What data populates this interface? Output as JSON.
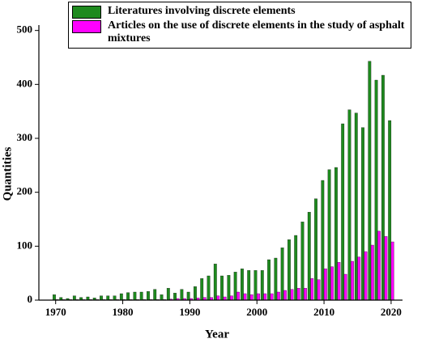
{
  "chart_data": {
    "type": "bar",
    "x_label": "Year",
    "y_label": "Quantities",
    "x": [
      1970,
      1971,
      1972,
      1973,
      1974,
      1975,
      1976,
      1977,
      1978,
      1979,
      1980,
      1981,
      1982,
      1983,
      1984,
      1985,
      1986,
      1987,
      1988,
      1989,
      1990,
      1991,
      1992,
      1993,
      1994,
      1995,
      1996,
      1997,
      1998,
      1999,
      2000,
      2001,
      2002,
      2003,
      2004,
      2005,
      2006,
      2007,
      2008,
      2009,
      2010,
      2011,
      2012,
      2013,
      2014,
      2015,
      2016,
      2017,
      2018,
      2019,
      2020
    ],
    "series": [
      {
        "name": "Literatures involving discrete elements",
        "color": "#1e8a1e",
        "values": [
          10,
          5,
          3,
          8,
          5,
          6,
          4,
          8,
          8,
          8,
          12,
          14,
          15,
          15,
          16,
          20,
          10,
          22,
          13,
          20,
          15,
          25,
          40,
          45,
          67,
          45,
          46,
          52,
          58,
          55,
          55,
          55,
          75,
          78,
          97,
          112,
          120,
          145,
          163,
          188,
          222,
          242,
          246,
          327,
          353,
          347,
          320,
          443,
          408,
          417,
          333
        ]
      },
      {
        "name": "Articles on the use of discrete elements in the study of asphalt mixtures",
        "color": "#ff00ff",
        "values": [
          1,
          1,
          1,
          1,
          1,
          1,
          1,
          1,
          1,
          1,
          1,
          1,
          1,
          1,
          1,
          1,
          1,
          2,
          3,
          3,
          3,
          4,
          5,
          5,
          8,
          6,
          8,
          15,
          12,
          10,
          12,
          12,
          12,
          15,
          18,
          20,
          22,
          22,
          40,
          38,
          58,
          62,
          70,
          48,
          72,
          80,
          90,
          102,
          128,
          118,
          108
        ]
      }
    ],
    "xlim": [
      1967.5,
      2021.7
    ],
    "xticks": [
      1970,
      1980,
      1990,
      2000,
      2010,
      2020
    ],
    "ylim": [
      0,
      510
    ],
    "yticks": [
      0,
      100,
      200,
      300,
      400,
      500
    ]
  }
}
